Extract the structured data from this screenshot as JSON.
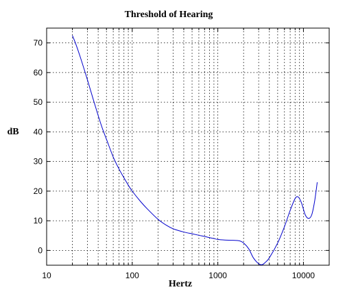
{
  "chart_data": {
    "type": "line",
    "title": "Threshold of Hearing",
    "xlabel": "Hertz",
    "ylabel": "dB",
    "xscale": "log",
    "xlim": [
      10,
      20000
    ],
    "ylim": [
      -5,
      75
    ],
    "grid": true,
    "line_color": "#0000cc",
    "x_ticks": [
      {
        "value": 10,
        "label": "10"
      },
      {
        "value": 100,
        "label": "100"
      },
      {
        "value": 1000,
        "label": "1000"
      },
      {
        "value": 10000,
        "label": "10000"
      }
    ],
    "y_ticks": [
      {
        "value": 0,
        "label": "0"
      },
      {
        "value": 10,
        "label": "10"
      },
      {
        "value": 20,
        "label": "20"
      },
      {
        "value": 30,
        "label": "30"
      },
      {
        "value": 40,
        "label": "40"
      },
      {
        "value": 50,
        "label": "50"
      },
      {
        "value": 60,
        "label": "60"
      },
      {
        "value": 70,
        "label": "70"
      }
    ],
    "series": [
      {
        "x": [
          20,
          22,
          25,
          30,
          35,
          40,
          45,
          50,
          60,
          70,
          80,
          90,
          100,
          125,
          150,
          200,
          250,
          300,
          400,
          500,
          600,
          700,
          800,
          900,
          1000,
          1200,
          1500,
          1800,
          2000,
          2300,
          2600,
          3000,
          3300,
          3600,
          4000,
          5000,
          6000,
          7000,
          8000,
          8700,
          9500,
          10500,
          11500,
          12500,
          13500,
          14500
        ],
        "y": [
          72.5,
          69.5,
          64.8,
          57.5,
          51.0,
          45.5,
          41.0,
          37.5,
          31.5,
          27.5,
          24.5,
          22.0,
          20.0,
          16.5,
          14.0,
          10.5,
          8.5,
          7.3,
          6.2,
          5.6,
          5.1,
          4.7,
          4.3,
          4.0,
          3.7,
          3.5,
          3.4,
          3.2,
          2.5,
          0.5,
          -2.5,
          -4.5,
          -4.8,
          -4.0,
          -2.5,
          2.5,
          8.0,
          13.5,
          17.5,
          18.0,
          16.0,
          12.0,
          10.8,
          12.0,
          16.5,
          23.0
        ]
      }
    ]
  }
}
